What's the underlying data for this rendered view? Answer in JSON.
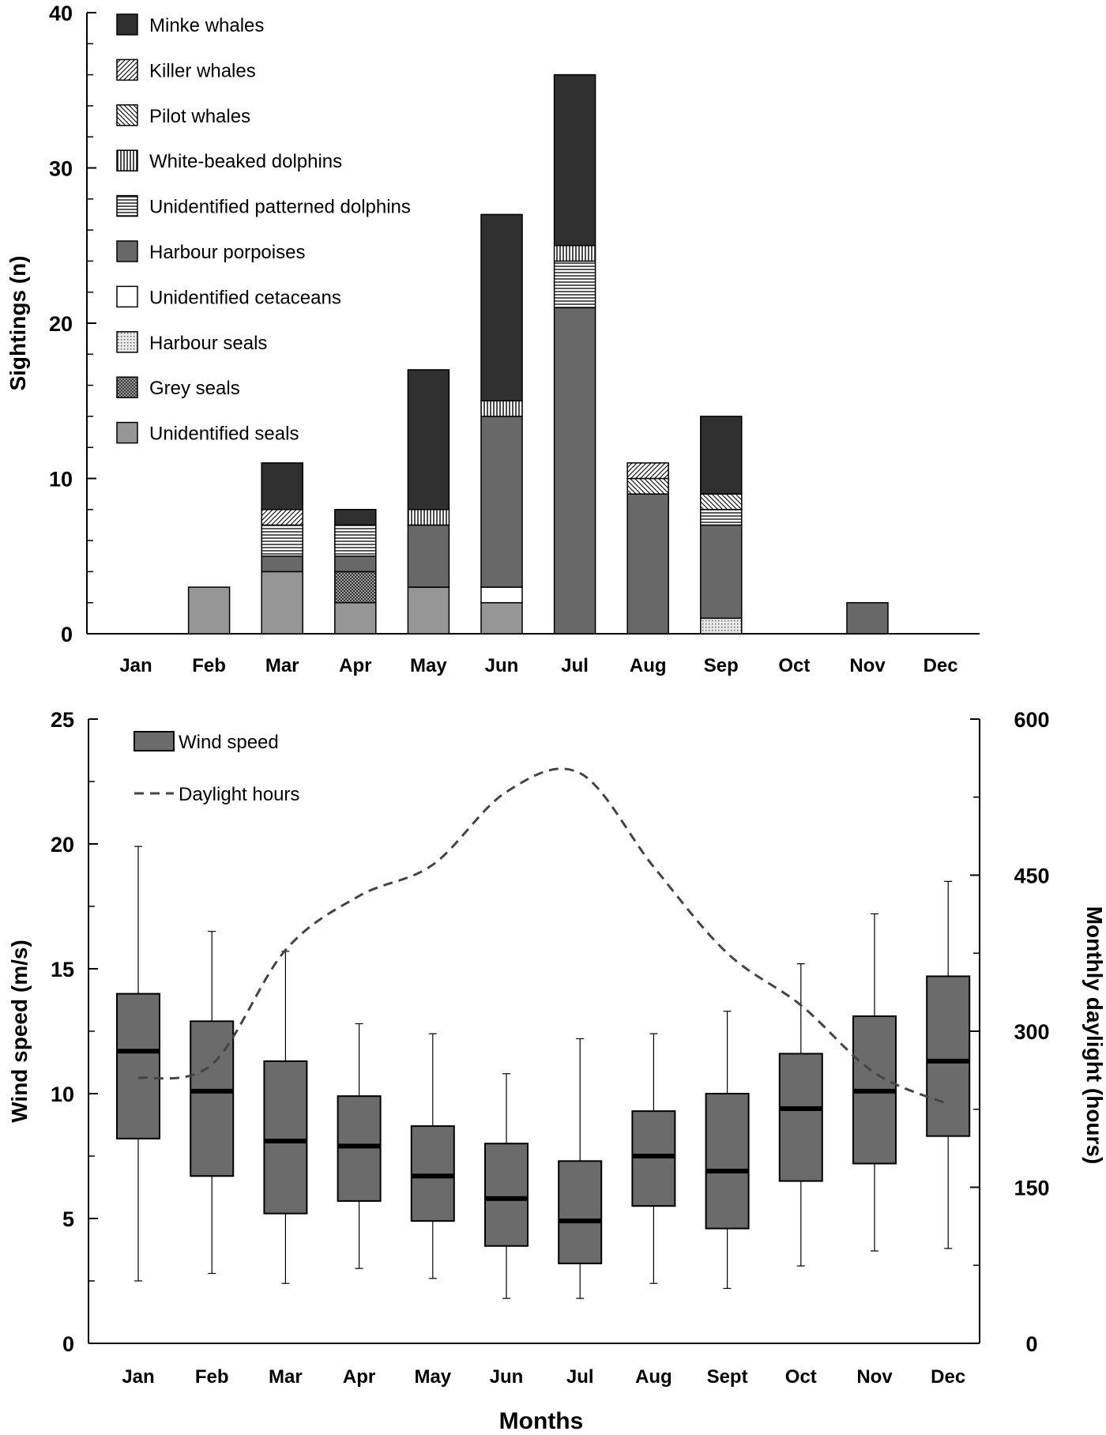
{
  "chart_data": [
    {
      "type": "bar",
      "stacked": true,
      "title": "",
      "xlabel": "",
      "ylabel": "Sightings (n)",
      "ylim": [
        0,
        40
      ],
      "yticks": [
        "0",
        "10",
        "20",
        "30",
        "40"
      ],
      "categories": [
        "Jan",
        "Feb",
        "Mar",
        "Apr",
        "May",
        "Jun",
        "Jul",
        "Aug",
        "Sep",
        "Oct",
        "Nov",
        "Dec"
      ],
      "series": [
        {
          "name": "Unidentified seals",
          "pattern": "solid-mid",
          "values": [
            0,
            3,
            4,
            2,
            3,
            2,
            0,
            0,
            0,
            0,
            0,
            0
          ]
        },
        {
          "name": "Grey seals",
          "pattern": "crosshatch",
          "values": [
            0,
            0,
            0,
            2,
            0,
            0,
            0,
            0,
            0,
            0,
            0,
            0
          ]
        },
        {
          "name": "Harbour seals",
          "pattern": "dots",
          "values": [
            0,
            0,
            0,
            0,
            0,
            0,
            0,
            0,
            1,
            0,
            0,
            0
          ]
        },
        {
          "name": "Unidentified cetaceans",
          "pattern": "white",
          "values": [
            0,
            0,
            0,
            0,
            0,
            1,
            0,
            0,
            0,
            0,
            0,
            0
          ]
        },
        {
          "name": "Harbour porpoises",
          "pattern": "solid-dark",
          "values": [
            0,
            0,
            1,
            1,
            4,
            11,
            21,
            9,
            6,
            0,
            2,
            0
          ]
        },
        {
          "name": "Unidentified patterned dolphins",
          "pattern": "hlines",
          "values": [
            0,
            0,
            2,
            2,
            0,
            0,
            3,
            0,
            1,
            0,
            0,
            0
          ]
        },
        {
          "name": "White-beaked dolphins",
          "pattern": "vlines",
          "values": [
            0,
            0,
            0,
            0,
            1,
            1,
            1,
            0,
            0,
            0,
            0,
            0
          ]
        },
        {
          "name": "Pilot whales",
          "pattern": "diag-back",
          "values": [
            0,
            0,
            0,
            0,
            0,
            0,
            0,
            1,
            1,
            0,
            0,
            0
          ]
        },
        {
          "name": "Killer whales",
          "pattern": "diag-fwd",
          "values": [
            0,
            0,
            1,
            0,
            0,
            0,
            0,
            1,
            0,
            0,
            0,
            0
          ]
        },
        {
          "name": "Minke whales",
          "pattern": "solid-black",
          "values": [
            0,
            0,
            3,
            1,
            9,
            12,
            11,
            0,
            5,
            0,
            0,
            0
          ]
        }
      ],
      "legend_order": [
        "Minke whales",
        "Killer whales",
        "Pilot whales",
        "White-beaked dolphins",
        "Unidentified patterned dolphins",
        "Harbour porpoises",
        "Unidentified cetaceans",
        "Harbour seals",
        "Grey seals",
        "Unidentified seals"
      ],
      "legend_position": "top-left"
    },
    {
      "type": "box",
      "title": "",
      "xlabel": "Months",
      "ylabel": "Wind speed (m/s)",
      "y2label": "Monthly daylight (hours)",
      "ylim": [
        0,
        25
      ],
      "y2lim": [
        0,
        600
      ],
      "yticks": [
        "0",
        "5",
        "10",
        "15",
        "20",
        "25"
      ],
      "y2ticks": [
        "0",
        "150",
        "300",
        "450",
        "600"
      ],
      "categories": [
        "Jan",
        "Feb",
        "Mar",
        "Apr",
        "May",
        "Jun",
        "Jul",
        "Aug",
        "Sept",
        "Oct",
        "Nov",
        "Dec"
      ],
      "box_series": {
        "name": "Wind speed",
        "min": [
          2.5,
          2.8,
          2.4,
          3.0,
          2.6,
          1.8,
          1.8,
          2.4,
          2.2,
          3.1,
          3.7,
          3.8
        ],
        "q1": [
          8.2,
          6.7,
          5.2,
          5.7,
          4.9,
          3.9,
          3.2,
          5.5,
          4.6,
          6.5,
          7.2,
          8.3
        ],
        "median": [
          11.7,
          10.1,
          8.1,
          7.9,
          6.7,
          5.8,
          4.9,
          7.5,
          6.9,
          9.4,
          10.1,
          11.3
        ],
        "q3": [
          14.0,
          12.9,
          11.3,
          9.9,
          8.7,
          8.0,
          7.3,
          9.3,
          10.0,
          11.6,
          13.1,
          14.7
        ],
        "max": [
          19.9,
          16.5,
          15.7,
          12.8,
          12.4,
          10.8,
          12.2,
          12.4,
          13.3,
          15.2,
          17.2,
          18.5
        ]
      },
      "line_series": {
        "name": "Daylight hours",
        "axis": "secondary",
        "style": "dashed",
        "values": [
          255,
          268,
          378,
          430,
          460,
          530,
          548,
          458,
          375,
          325,
          260,
          230
        ]
      },
      "legend_position": "top-left"
    }
  ]
}
